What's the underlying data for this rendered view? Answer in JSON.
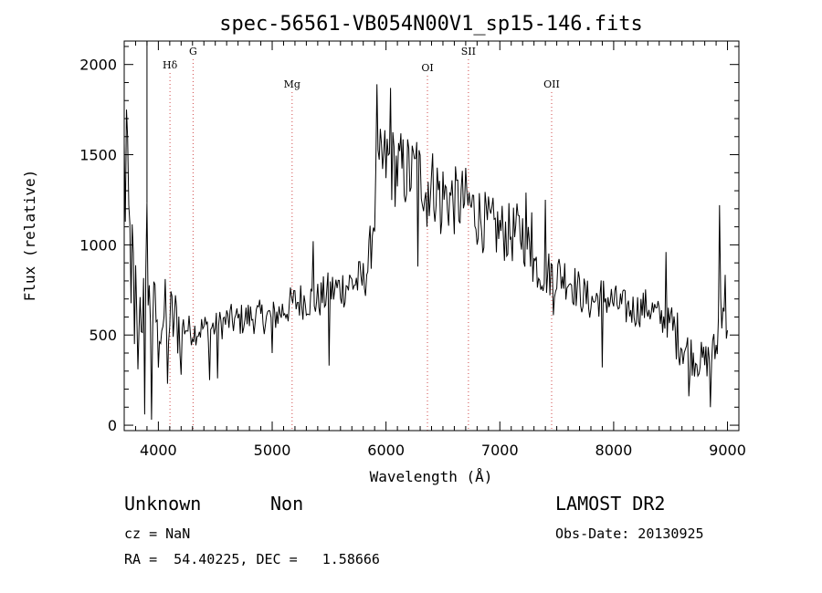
{
  "chart_data": {
    "type": "line",
    "title": "spec-56561-VB054N00V1_sp15-146.fits",
    "xlabel": "Wavelength (Å)",
    "ylabel": "Flux (relative)",
    "xlim": [
      3700,
      9100
    ],
    "ylim": [
      -30,
      2130
    ],
    "xticks": [
      4000,
      5000,
      6000,
      7000,
      8000,
      9000
    ],
    "yticks": [
      0,
      500,
      1000,
      1500,
      2000
    ],
    "grid": false,
    "lines": [
      {
        "label": "Hδ",
        "wavelength": 4102
      },
      {
        "label": "G",
        "wavelength": 4305
      },
      {
        "label": "Mg",
        "wavelength": 5175
      },
      {
        "label": "OI",
        "wavelength": 6364
      },
      {
        "label": "SII",
        "wavelength": 6724
      },
      {
        "label": "OII",
        "wavelength": 7455
      }
    ],
    "spectrum": {
      "step": 10,
      "anchors": [
        [
          3700,
          1400
        ],
        [
          3720,
          1250
        ],
        [
          3760,
          900
        ],
        [
          3800,
          750
        ],
        [
          3850,
          650
        ],
        [
          3900,
          700
        ],
        [
          3950,
          600
        ],
        [
          4000,
          620
        ],
        [
          4100,
          580
        ],
        [
          4200,
          560
        ],
        [
          4300,
          520
        ],
        [
          4400,
          540
        ],
        [
          4500,
          540
        ],
        [
          4600,
          580
        ],
        [
          4700,
          580
        ],
        [
          4800,
          600
        ],
        [
          4900,
          600
        ],
        [
          5000,
          600
        ],
        [
          5100,
          640
        ],
        [
          5200,
          680
        ],
        [
          5300,
          700
        ],
        [
          5400,
          690
        ],
        [
          5500,
          740
        ],
        [
          5600,
          760
        ],
        [
          5700,
          790
        ],
        [
          5800,
          800
        ],
        [
          5850,
          900
        ],
        [
          5900,
          1200
        ],
        [
          5950,
          1420
        ],
        [
          6000,
          1460
        ],
        [
          6100,
          1420
        ],
        [
          6200,
          1400
        ],
        [
          6300,
          1380
        ],
        [
          6400,
          1340
        ],
        [
          6500,
          1280
        ],
        [
          6600,
          1240
        ],
        [
          6700,
          1240
        ],
        [
          6800,
          1170
        ],
        [
          6900,
          1100
        ],
        [
          7000,
          1080
        ],
        [
          7100,
          1060
        ],
        [
          7200,
          1070
        ],
        [
          7300,
          900
        ],
        [
          7400,
          840
        ],
        [
          7500,
          840
        ],
        [
          7600,
          820
        ],
        [
          7700,
          740
        ],
        [
          7800,
          680
        ],
        [
          7900,
          720
        ],
        [
          8000,
          680
        ],
        [
          8100,
          650
        ],
        [
          8200,
          640
        ],
        [
          8300,
          660
        ],
        [
          8400,
          600
        ],
        [
          8500,
          560
        ],
        [
          8600,
          450
        ],
        [
          8700,
          380
        ],
        [
          8800,
          350
        ],
        [
          8900,
          420
        ],
        [
          8950,
          750
        ],
        [
          9000,
          650
        ]
      ],
      "spikes": [
        [
          3720,
          1750
        ],
        [
          3790,
          450
        ],
        [
          3820,
          310
        ],
        [
          3880,
          60
        ],
        [
          3900,
          1230
        ],
        [
          3940,
          30
        ],
        [
          4000,
          320
        ],
        [
          4080,
          230
        ],
        [
          4200,
          280
        ],
        [
          4450,
          250
        ],
        [
          4520,
          260
        ],
        [
          5000,
          400
        ],
        [
          5360,
          1020
        ],
        [
          5500,
          330
        ],
        [
          5920,
          1890
        ],
        [
          6040,
          1870
        ],
        [
          6230,
          1550
        ],
        [
          6270,
          1570
        ],
        [
          6280,
          880
        ],
        [
          6360,
          1100
        ],
        [
          6440,
          1220
        ],
        [
          6480,
          1060
        ],
        [
          6720,
          1220
        ],
        [
          7230,
          1290
        ],
        [
          7280,
          1180
        ],
        [
          7400,
          1250
        ],
        [
          7470,
          610
        ],
        [
          7900,
          320
        ],
        [
          8460,
          960
        ],
        [
          8660,
          160
        ],
        [
          8850,
          100
        ],
        [
          8930,
          1220
        ],
        [
          8990,
          480
        ]
      ]
    }
  },
  "info": {
    "class": "Unknown",
    "subclass": "Non",
    "survey": "LAMOST DR2",
    "cz": "cz = NaN",
    "obsdate": "Obs-Date: 20130925",
    "radec": "RA =  54.40225, DEC =   1.58666"
  }
}
